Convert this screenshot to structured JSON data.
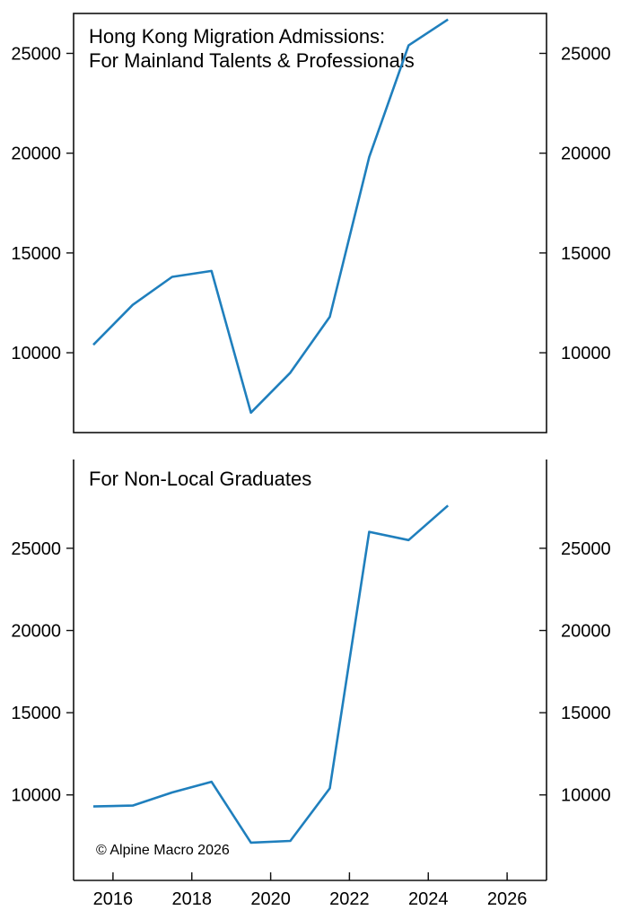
{
  "chart_data": [
    {
      "type": "line",
      "title": "Hong Kong Migration Admissions:",
      "subtitle": "For Mainland Talents & Professionals",
      "xlabel": "",
      "ylabel": "",
      "ylim": [
        6000,
        27000
      ],
      "yticks": [
        10000,
        15000,
        20000,
        25000
      ],
      "ytick_labels": [
        "10000",
        "15000",
        "20000",
        "25000"
      ],
      "grid": false,
      "color": "#1f7fbd",
      "series": [
        {
          "x": [
            2015.5,
            2016.5,
            2017.5,
            2018.5,
            2019.5,
            2020.5,
            2021.5,
            2022.5,
            2023.5,
            2024.5
          ],
          "values": [
            10400,
            12400,
            13800,
            14100,
            7000,
            9000,
            11800,
            19800,
            25400,
            26700
          ]
        }
      ]
    },
    {
      "type": "line",
      "title": "For Non-Local Graduates",
      "xlabel": "",
      "ylabel": "",
      "ylim": [
        4800,
        30400
      ],
      "yticks": [
        10000,
        15000,
        20000,
        25000
      ],
      "ytick_labels": [
        "10000",
        "15000",
        "20000",
        "25000"
      ],
      "xlim": [
        2015,
        2027
      ],
      "xticks": [
        2016,
        2018,
        2020,
        2022,
        2024,
        2026
      ],
      "xtick_labels": [
        "2016",
        "2018",
        "2020",
        "2022",
        "2024",
        "2026"
      ],
      "grid": false,
      "color": "#1f7fbd",
      "series": [
        {
          "x": [
            2015.5,
            2016.5,
            2017.5,
            2018.5,
            2019.5,
            2020.5,
            2021.5,
            2022.5,
            2023.5,
            2024.5
          ],
          "values": [
            9300,
            9350,
            10150,
            10800,
            7100,
            7200,
            10400,
            26000,
            25500,
            27600
          ]
        }
      ]
    }
  ],
  "footer": {
    "copyright": "© Alpine Macro 2026"
  }
}
